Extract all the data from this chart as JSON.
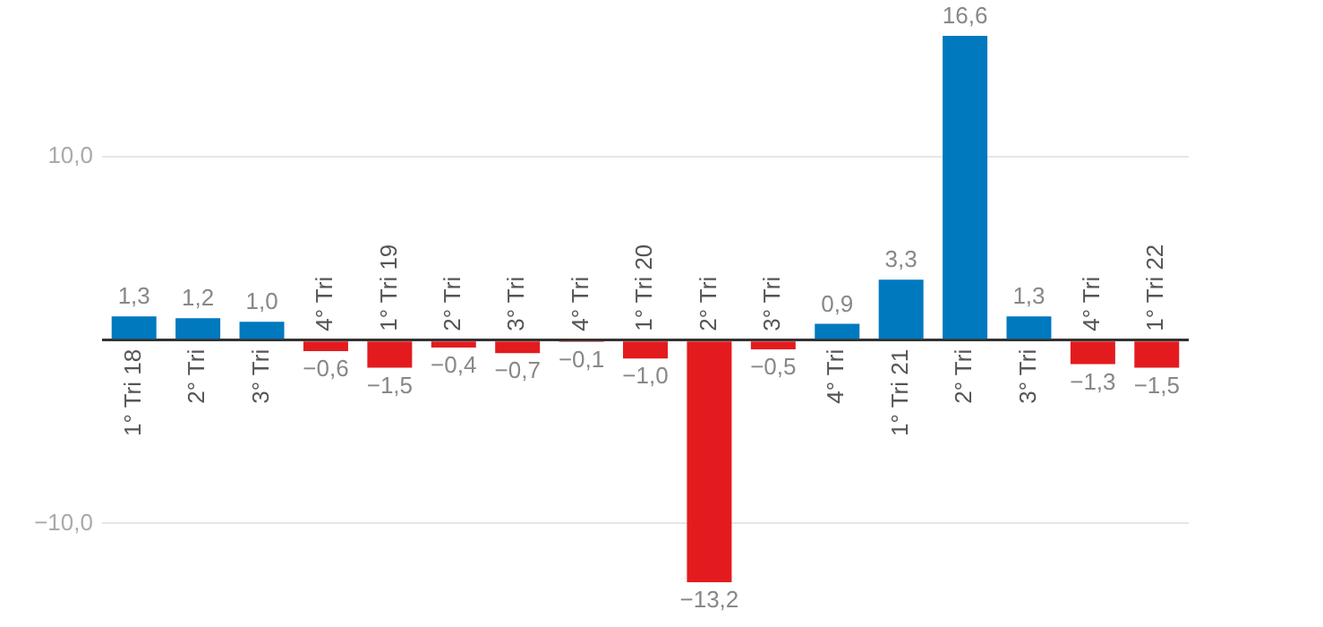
{
  "chart_data": {
    "type": "bar",
    "categories": [
      "1° Tri 18",
      "2° Tri",
      "3° Tri",
      "4° Tri",
      "1° Tri 19",
      "2° Tri",
      "3° Tri",
      "4° Tri",
      "1° Tri 20",
      "2° Tri",
      "3° Tri",
      "4° Tri",
      "1° Tri 21",
      "2° Tri",
      "3° Tri",
      "4° Tri",
      "1° Tri 22"
    ],
    "values": [
      1.3,
      1.2,
      1.0,
      -0.6,
      -1.5,
      -0.4,
      -0.7,
      -0.1,
      -1.0,
      -13.2,
      -0.5,
      0.9,
      3.3,
      16.6,
      1.3,
      -1.3,
      -1.5
    ],
    "colors": [
      "#0179be",
      "#0179be",
      "#0179be",
      "#e31b1e",
      "#e31b1e",
      "#e31b1e",
      "#e31b1e",
      "#e31b1e",
      "#e31b1e",
      "#e31b1e",
      "#e31b1e",
      "#0179be",
      "#0179be",
      "#0179be",
      "#0179be",
      "#e31b1e",
      "#e31b1e"
    ],
    "value_labels": [
      "1,3",
      "1,2",
      "1,0",
      "−0,6",
      "−1,5",
      "−0,4",
      "−0,7",
      "−0,1",
      "−1,0",
      "−13,2",
      "−0,5",
      "0,9",
      "3,3",
      "16,6",
      "1,3",
      "−1,3",
      "−1,5"
    ],
    "ylim": [
      -13.2,
      16.6
    ],
    "yticks": [
      {
        "value": -10,
        "label": "−10,0"
      },
      {
        "value": 0,
        "label": null
      },
      {
        "value": 10,
        "label": "10,0"
      }
    ],
    "grid": "y"
  }
}
